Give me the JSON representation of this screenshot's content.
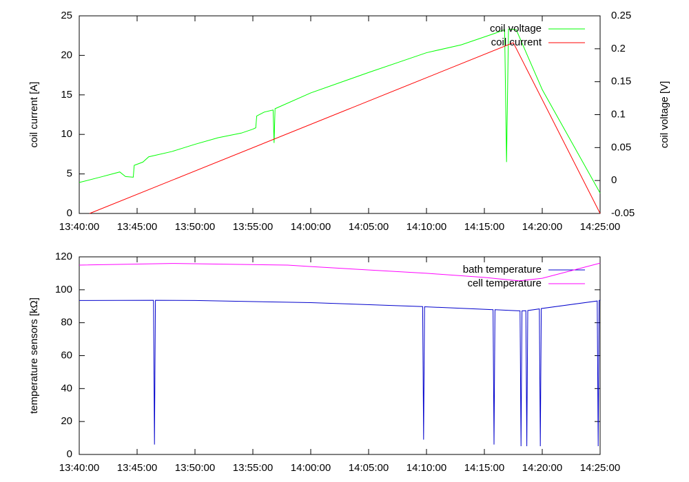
{
  "chart_data": [
    {
      "type": "line",
      "ylabel": "coil current [A]",
      "y2label": "coil voltage [V]",
      "xlim": [
        "13:40:00",
        "14:25:00"
      ],
      "xticks": [
        "13:40:00",
        "13:45:00",
        "13:50:00",
        "13:55:00",
        "14:00:00",
        "14:05:00",
        "14:10:00",
        "14:15:00",
        "14:20:00",
        "14:25:00"
      ],
      "ylim": [
        0,
        25
      ],
      "yticks": [
        0,
        5,
        10,
        15,
        20,
        25
      ],
      "y2lim": [
        -0.05,
        0.25
      ],
      "y2ticks": [
        -0.05,
        0,
        0.05,
        0.1,
        0.15,
        0.2,
        0.25
      ],
      "legend": "upper right",
      "series": [
        {
          "name": "coil voltage",
          "color": "#00ff00",
          "axis": "y2",
          "x": [
            "13:40:00",
            "13:42:00",
            "13:43:30",
            "13:44:00",
            "13:44:40",
            "13:44:45",
            "13:45:30",
            "13:46:00",
            "13:48:00",
            "13:50:00",
            "13:52:00",
            "13:54:00",
            "13:55:00",
            "13:55:15",
            "13:55:20",
            "13:56:00",
            "13:56:45",
            "13:56:50",
            "13:56:55",
            "14:00:00",
            "14:05:00",
            "14:08:00",
            "14:10:00",
            "14:13:00",
            "14:16:00",
            "14:16:45",
            "14:16:55",
            "14:17:05",
            "14:17:45",
            "14:20:00",
            "14:25:00"
          ],
          "values": [
            -0.003,
            0.006,
            0.013,
            0.006,
            0.005,
            0.023,
            0.028,
            0.036,
            0.044,
            0.055,
            0.065,
            0.072,
            0.078,
            0.08,
            0.098,
            0.104,
            0.107,
            0.057,
            0.109,
            0.133,
            0.164,
            0.182,
            0.194,
            0.206,
            0.224,
            0.229,
            0.028,
            0.23,
            0.229,
            0.138,
            -0.019
          ]
        },
        {
          "name": "coil current",
          "color": "#ff0000",
          "x": [
            "13:40:54",
            "14:17:30",
            "14:25:00"
          ],
          "values": [
            0,
            21.6,
            0
          ]
        }
      ]
    },
    {
      "type": "line",
      "ylabel": "temperature sensors [kΩ]",
      "xlim": [
        "13:40:00",
        "14:25:00"
      ],
      "xticks": [
        "13:40:00",
        "13:45:00",
        "13:50:00",
        "13:55:00",
        "14:00:00",
        "14:05:00",
        "14:10:00",
        "14:15:00",
        "14:20:00",
        "14:25:00"
      ],
      "ylim": [
        0,
        120
      ],
      "yticks": [
        0,
        20,
        40,
        60,
        80,
        100,
        120
      ],
      "legend": "upper right",
      "series": [
        {
          "name": "bath temperature",
          "color": "#0000cc",
          "x": [
            "13:40:00",
            "13:46:25",
            "13:46:30",
            "13:46:35",
            "13:50:00",
            "14:00:00",
            "14:09:40",
            "14:09:45",
            "14:09:50",
            "14:15:45",
            "14:15:50",
            "14:15:55",
            "14:18:05",
            "14:18:10",
            "14:18:15",
            "14:18:35",
            "14:18:40",
            "14:18:45",
            "14:19:45",
            "14:19:50",
            "14:19:55",
            "14:24:45",
            "14:24:50",
            "14:24:55",
            "14:25:00"
          ],
          "values": [
            93.5,
            93.6,
            6,
            93.6,
            93.5,
            92.2,
            89.8,
            9,
            89.7,
            87.9,
            6,
            87.9,
            87.2,
            5,
            87.2,
            87.3,
            5,
            87.4,
            88.4,
            5,
            88.6,
            93.2,
            5,
            93.5,
            93.8
          ]
        },
        {
          "name": "cell temperature",
          "color": "#ff00ff",
          "x": [
            "13:40:00",
            "13:48:00",
            "13:58:00",
            "14:00:00",
            "14:10:00",
            "14:15:00",
            "14:18:00",
            "14:20:00",
            "14:25:00"
          ],
          "values": [
            115,
            116,
            115,
            114.1,
            110,
            107.5,
            105.4,
            107,
            116.2
          ]
        }
      ]
    }
  ]
}
